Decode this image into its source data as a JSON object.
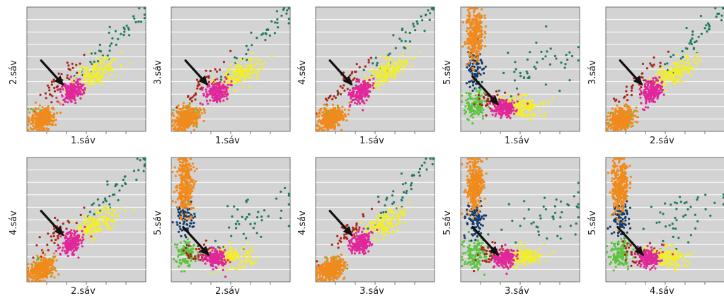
{
  "colors": {
    "plot_bg": "#d3d3d3",
    "grid": "#ffffff",
    "frame": "#6f6f6f",
    "arrow": "#111111",
    "orange": "#f08a1c",
    "pink": "#e0279a",
    "yellow": "#f2ee2a",
    "green": "#5cc43c",
    "darkred": "#a8261a",
    "teal": "#1f7a5a",
    "navy": "#123a6a"
  },
  "chart_data": [
    {
      "type": "scatter",
      "xlabel": "1.sáv",
      "ylabel": "2.sáv",
      "layout": "A"
    },
    {
      "type": "scatter",
      "xlabel": "1.sáv",
      "ylabel": "3.sáv",
      "layout": "A"
    },
    {
      "type": "scatter",
      "xlabel": "1.sáv",
      "ylabel": "4.sáv",
      "layout": "A"
    },
    {
      "type": "scatter",
      "xlabel": "1.sáv",
      "ylabel": "5.sáv",
      "layout": "B"
    },
    {
      "type": "scatter",
      "xlabel": "2.sáv",
      "ylabel": "3.sáv",
      "layout": "A"
    },
    {
      "type": "scatter",
      "xlabel": "2.sáv",
      "ylabel": "4.sáv",
      "layout": "A"
    },
    {
      "type": "scatter",
      "xlabel": "2.sáv",
      "ylabel": "5.sáv",
      "layout": "B"
    },
    {
      "type": "scatter",
      "xlabel": "3.sáv",
      "ylabel": "4.sáv",
      "layout": "A"
    },
    {
      "type": "scatter",
      "xlabel": "3.sáv",
      "ylabel": "5.sáv",
      "layout": "B"
    },
    {
      "type": "scatter",
      "xlabel": "4.sáv",
      "ylabel": "5.sáv",
      "layout": "B"
    }
  ]
}
